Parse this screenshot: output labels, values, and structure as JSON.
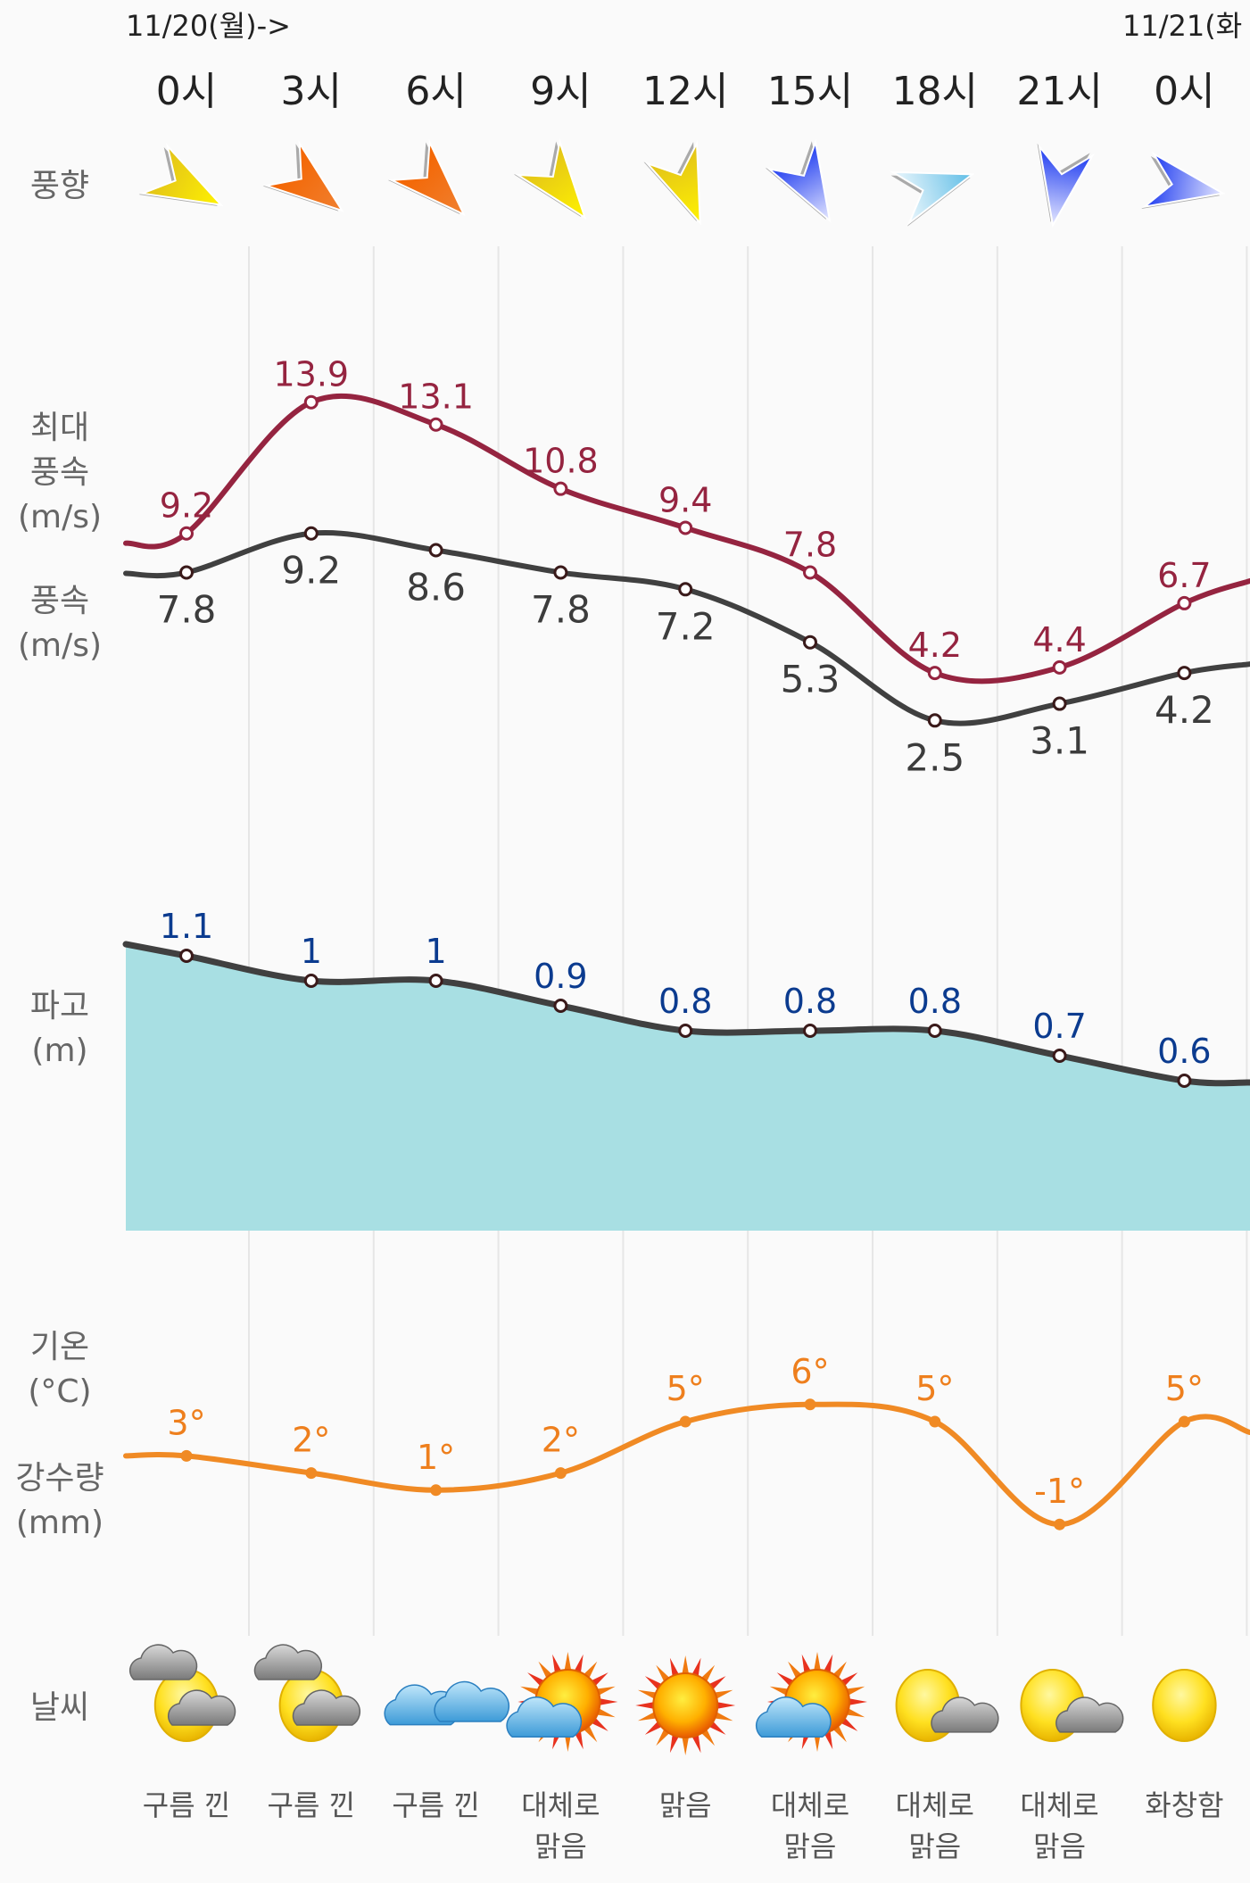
{
  "header": {
    "date_start": "11/20(월)->",
    "date_next": "11/21(화"
  },
  "side_labels": {
    "wind_dir": "풍향",
    "max_wind": [
      "최대",
      "풍속",
      "(m/s)"
    ],
    "wind": [
      "풍속",
      "(m/s)"
    ],
    "wave": [
      "파고",
      "(m)"
    ],
    "temp": [
      "기온",
      "(°C)"
    ],
    "rain": [
      "강수량",
      "(mm)"
    ],
    "weather": "날씨"
  },
  "colors": {
    "max_wind_line": "#952440",
    "wind_line": "#404040",
    "wave_fill": "#a8dfe3",
    "wave_line": "#404040",
    "temp_line": "#f08a24"
  },
  "chart_data": {
    "type": "line",
    "categories": [
      "0시",
      "3시",
      "6시",
      "9시",
      "12시",
      "15시",
      "18시",
      "21시",
      "0시"
    ],
    "wind_direction": [
      {
        "icon": "arrow-icon",
        "color": "yellow"
      },
      {
        "icon": "arrow-icon",
        "color": "orange"
      },
      {
        "icon": "arrow-icon",
        "color": "orange"
      },
      {
        "icon": "arrow-icon",
        "color": "yellow"
      },
      {
        "icon": "arrow-icon",
        "color": "yellow"
      },
      {
        "icon": "arrow-icon",
        "color": "blue"
      },
      {
        "icon": "arrow-icon",
        "color": "light-blue"
      },
      {
        "icon": "arrow-icon",
        "color": "blue"
      },
      {
        "icon": "arrow-icon",
        "color": "blue"
      }
    ],
    "series": [
      {
        "name": "최대 풍속 (m/s)",
        "values": [
          9.2,
          13.9,
          13.1,
          10.8,
          9.4,
          7.8,
          4.2,
          4.4,
          6.7
        ],
        "labels": [
          "9.2",
          "13.9",
          "13.1",
          "10.8",
          "9.4",
          "7.8",
          "4.2",
          "4.4",
          "6.7"
        ]
      },
      {
        "name": "풍속 (m/s)",
        "values": [
          7.8,
          9.2,
          8.6,
          7.8,
          7.2,
          5.3,
          2.5,
          3.1,
          4.2
        ],
        "labels": [
          "7.8",
          "9.2",
          "8.6",
          "7.8",
          "7.2",
          "5.3",
          "2.5",
          "3.1",
          "4.2"
        ]
      },
      {
        "name": "파고 (m)",
        "values": [
          1.1,
          1,
          1,
          0.9,
          0.8,
          0.8,
          0.8,
          0.7,
          0.6
        ],
        "labels": [
          "1.1",
          "1",
          "1",
          "0.9",
          "0.8",
          "0.8",
          "0.8",
          "0.7",
          "0.6"
        ]
      },
      {
        "name": "기온 (°C)",
        "values": [
          3,
          2,
          1,
          2,
          5,
          6,
          5,
          -1,
          5
        ],
        "labels": [
          "3°",
          "2°",
          "1°",
          "2°",
          "5°",
          "6°",
          "5°",
          "-1°",
          "5°"
        ]
      }
    ],
    "weather": [
      {
        "icon": "sun-cloud-icon",
        "label": [
          "구름 낀"
        ]
      },
      {
        "icon": "sun-cloud-icon",
        "label": [
          "구름 낀"
        ]
      },
      {
        "icon": "cloud-icon",
        "label": [
          "구름 낀"
        ]
      },
      {
        "icon": "sun-rays-cloud-icon",
        "label": [
          "대체로",
          "맑음"
        ]
      },
      {
        "icon": "sun-rays-icon",
        "label": [
          "맑음"
        ]
      },
      {
        "icon": "sun-rays-cloud-icon",
        "label": [
          "대체로",
          "맑음"
        ]
      },
      {
        "icon": "sun-small-cloud-icon",
        "label": [
          "대체로",
          "맑음"
        ]
      },
      {
        "icon": "sun-small-cloud-icon",
        "label": [
          "대체로",
          "맑음"
        ]
      },
      {
        "icon": "sun-icon",
        "label": [
          "화창함"
        ]
      }
    ],
    "grid": true
  }
}
